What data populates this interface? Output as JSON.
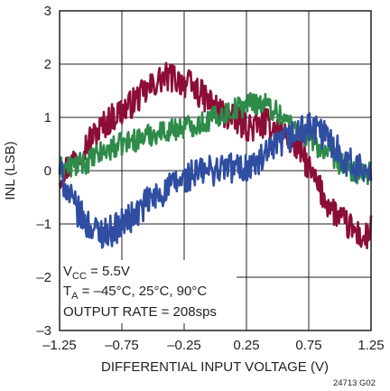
{
  "chart_data": {
    "type": "line",
    "title": "",
    "xlabel": "DIFFERENTIAL INPUT VOLTAGE (V)",
    "ylabel": "INL (LSB)",
    "xlim": [
      -1.25,
      1.25
    ],
    "ylim": [
      -3,
      3
    ],
    "x_ticks": [
      "–1.25",
      "–0.75",
      "–0.25",
      "0.25",
      "0.75",
      "1.25"
    ],
    "y_ticks": [
      "3",
      "2",
      "1",
      "0",
      "–1",
      "–2",
      "–3"
    ],
    "grid": true,
    "series": [
      {
        "color": "#8c0e37",
        "x": [
          -1.25,
          -1.1,
          -1.0,
          -0.9,
          -0.8,
          -0.7,
          -0.6,
          -0.5,
          -0.45,
          -0.4,
          -0.35,
          -0.3,
          -0.2,
          -0.1,
          0.0,
          0.1,
          0.2,
          0.3,
          0.4,
          0.5,
          0.6,
          0.7,
          0.8,
          0.9,
          1.0,
          1.1,
          1.2,
          1.25
        ],
        "y": [
          -0.1,
          0.3,
          0.6,
          0.85,
          1.05,
          1.2,
          1.4,
          1.6,
          1.7,
          1.75,
          1.75,
          1.7,
          1.6,
          1.4,
          1.2,
          1.0,
          0.9,
          0.8,
          0.9,
          0.8,
          0.6,
          0.3,
          -0.2,
          -0.6,
          -0.9,
          -1.1,
          -1.3,
          -1.1
        ]
      },
      {
        "color": "#2e8b4a",
        "x": [
          -1.25,
          -1.1,
          -1.0,
          -0.9,
          -0.8,
          -0.7,
          -0.6,
          -0.5,
          -0.4,
          -0.3,
          -0.2,
          -0.1,
          0.0,
          0.1,
          0.2,
          0.3,
          0.4,
          0.5,
          0.6,
          0.7,
          0.8,
          0.9,
          1.0,
          1.1,
          1.2,
          1.25
        ],
        "y": [
          0.05,
          0.1,
          0.2,
          0.35,
          0.45,
          0.55,
          0.6,
          0.7,
          0.75,
          0.8,
          0.85,
          0.9,
          1.0,
          1.1,
          1.2,
          1.3,
          1.25,
          1.1,
          0.9,
          0.7,
          0.5,
          0.3,
          0.15,
          0.0,
          -0.1,
          -0.05
        ]
      },
      {
        "color": "#2f4ea1",
        "x": [
          -1.25,
          -1.15,
          -1.05,
          -0.95,
          -0.85,
          -0.75,
          -0.65,
          -0.55,
          -0.45,
          -0.35,
          -0.25,
          -0.15,
          -0.05,
          0.05,
          0.15,
          0.25,
          0.35,
          0.45,
          0.55,
          0.65,
          0.75,
          0.85,
          0.95,
          1.05,
          1.15,
          1.25
        ],
        "y": [
          0.0,
          -0.6,
          -0.95,
          -1.15,
          -1.15,
          -1.0,
          -0.85,
          -0.6,
          -0.45,
          -0.3,
          -0.15,
          -0.05,
          0.0,
          0.05,
          0.05,
          0.05,
          0.15,
          0.35,
          0.55,
          0.7,
          0.8,
          0.7,
          0.5,
          0.2,
          0.0,
          0.1
        ]
      }
    ],
    "annotation": {
      "line1_main": "V",
      "line1_sub": "CC",
      "line1_rest": " = 5.5V",
      "line2_main": "T",
      "line2_sub": "A",
      "line2_rest": " = –45°C, 25°C, 90°C",
      "line3": "OUTPUT RATE = 208sps"
    },
    "figure_id": "24713 G02"
  }
}
